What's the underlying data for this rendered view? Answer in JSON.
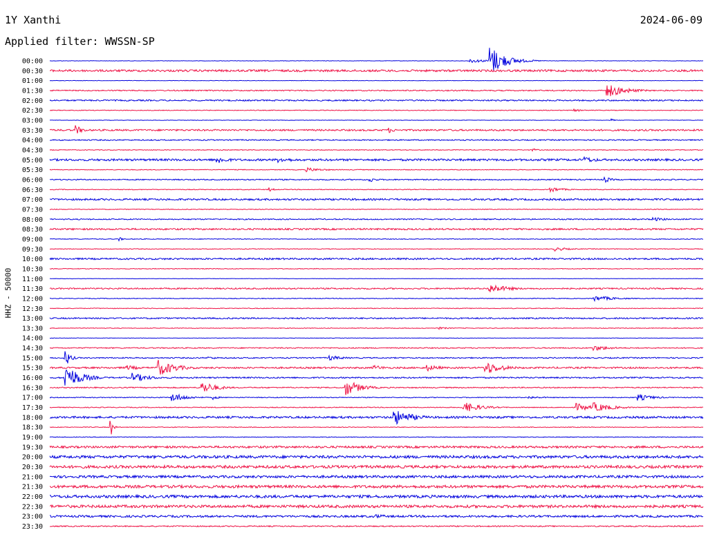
{
  "header": {
    "station": "1Y Xanthi",
    "date": "2024-06-09",
    "filter": "Applied filter: WWSSN-SP"
  },
  "axis_label": "HHZ - 50000",
  "colors": {
    "trace_a": "#0000dd",
    "trace_b": "#ee1144",
    "background": "#ffffff",
    "text": "#000000"
  },
  "chart_data": {
    "type": "line",
    "ylabel": "HHZ - 50000",
    "rows": [
      "00:00",
      "00:30",
      "01:00",
      "01:30",
      "02:00",
      "02:30",
      "03:00",
      "03:30",
      "04:00",
      "04:30",
      "05:00",
      "05:30",
      "06:00",
      "06:30",
      "07:00",
      "07:30",
      "08:00",
      "08:30",
      "09:00",
      "09:30",
      "10:00",
      "10:30",
      "11:00",
      "11:30",
      "12:00",
      "12:30",
      "13:00",
      "13:30",
      "14:00",
      "14:30",
      "15:00",
      "15:30",
      "16:00",
      "16:30",
      "17:00",
      "17:30",
      "18:00",
      "18:30",
      "19:00",
      "19:30",
      "20:00",
      "20:30",
      "21:00",
      "21:30",
      "22:00",
      "22:30",
      "23:00",
      "23:30"
    ],
    "row_minutes": 30,
    "series_colors": [
      "#0000dd",
      "#ee1144"
    ],
    "noise": [
      0.3,
      1.5,
      0.3,
      0.8,
      1.0,
      0.5,
      0.3,
      1.2,
      0.8,
      0.5,
      1.5,
      0.5,
      0.8,
      0.5,
      1.3,
      0.5,
      0.8,
      1.2,
      0.5,
      0.5,
      1.2,
      0.5,
      0.3,
      1.0,
      0.5,
      0.5,
      1.0,
      0.5,
      0.3,
      0.8,
      0.8,
      1.2,
      1.0,
      0.8,
      0.6,
      0.6,
      1.5,
      0.5,
      0.5,
      1.5,
      2.0,
      2.0,
      1.8,
      2.0,
      2.0,
      2.0,
      1.5,
      0.8
    ],
    "events": [
      {
        "row": "00:00",
        "minute": 20.2,
        "amp": 23,
        "dur": 1.2
      },
      {
        "row": "00:00",
        "minute": 19.3,
        "amp": 3,
        "dur": 1.5
      },
      {
        "row": "01:30",
        "minute": 25.6,
        "amp": 10,
        "dur": 1.5
      },
      {
        "row": "01:30",
        "minute": 26.5,
        "amp": 3,
        "dur": 1.5
      },
      {
        "row": "02:30",
        "minute": 24.0,
        "amp": 2,
        "dur": 1.0
      },
      {
        "row": "03:00",
        "minute": 25.8,
        "amp": 2,
        "dur": 0.3
      },
      {
        "row": "03:30",
        "minute": 1.2,
        "amp": 7,
        "dur": 0.6
      },
      {
        "row": "03:30",
        "minute": 15.6,
        "amp": 4,
        "dur": 0.5
      },
      {
        "row": "04:30",
        "minute": 22.2,
        "amp": 2,
        "dur": 0.5
      },
      {
        "row": "05:00",
        "minute": 7.7,
        "amp": 6,
        "dur": 1.0
      },
      {
        "row": "05:00",
        "minute": 10.5,
        "amp": 4,
        "dur": 1.6
      },
      {
        "row": "05:00",
        "minute": 24.5,
        "amp": 5,
        "dur": 1.3
      },
      {
        "row": "05:30",
        "minute": 11.8,
        "amp": 3,
        "dur": 1.5
      },
      {
        "row": "06:00",
        "minute": 14.7,
        "amp": 4,
        "dur": 0.5
      },
      {
        "row": "06:00",
        "minute": 25.5,
        "amp": 4,
        "dur": 0.6
      },
      {
        "row": "06:30",
        "minute": 10.1,
        "amp": 3,
        "dur": 0.4
      },
      {
        "row": "06:30",
        "minute": 23.0,
        "amp": 4,
        "dur": 1.0
      },
      {
        "row": "08:00",
        "minute": 27.7,
        "amp": 3,
        "dur": 1.2
      },
      {
        "row": "09:00",
        "minute": 3.2,
        "amp": 3,
        "dur": 0.3
      },
      {
        "row": "09:30",
        "minute": 23.2,
        "amp": 3,
        "dur": 1.2
      },
      {
        "row": "11:30",
        "minute": 20.2,
        "amp": 7,
        "dur": 1.5
      },
      {
        "row": "12:00",
        "minute": 25.0,
        "amp": 4,
        "dur": 1.8
      },
      {
        "row": "13:30",
        "minute": 17.8,
        "amp": 2,
        "dur": 1.0
      },
      {
        "row": "14:30",
        "minute": 25.0,
        "amp": 4,
        "dur": 1.5
      },
      {
        "row": "15:00",
        "minute": 0.7,
        "amp": 14,
        "dur": 0.4
      },
      {
        "row": "15:00",
        "minute": 7.3,
        "amp": 2,
        "dur": 1.2
      },
      {
        "row": "15:00",
        "minute": 12.8,
        "amp": 4,
        "dur": 1.2
      },
      {
        "row": "15:30",
        "minute": 3.5,
        "amp": 4,
        "dur": 1.2
      },
      {
        "row": "15:30",
        "minute": 5.0,
        "amp": 12,
        "dur": 1.4
      },
      {
        "row": "15:30",
        "minute": 14.9,
        "amp": 4,
        "dur": 1.0
      },
      {
        "row": "15:30",
        "minute": 17.3,
        "amp": 5,
        "dur": 1.2
      },
      {
        "row": "15:30",
        "minute": 20.0,
        "amp": 10,
        "dur": 1.4
      },
      {
        "row": "16:00",
        "minute": 0.7,
        "amp": 20,
        "dur": 1.2
      },
      {
        "row": "16:00",
        "minute": 3.8,
        "amp": 7,
        "dur": 1.4
      },
      {
        "row": "16:30",
        "minute": 7.0,
        "amp": 9,
        "dur": 1.2
      },
      {
        "row": "16:30",
        "minute": 13.6,
        "amp": 12,
        "dur": 1.2
      },
      {
        "row": "17:00",
        "minute": 5.6,
        "amp": 7,
        "dur": 1.2
      },
      {
        "row": "17:00",
        "minute": 7.5,
        "amp": 3,
        "dur": 0.5
      },
      {
        "row": "17:00",
        "minute": 22.0,
        "amp": 2,
        "dur": 1.5
      },
      {
        "row": "17:00",
        "minute": 27.0,
        "amp": 5,
        "dur": 1.3
      },
      {
        "row": "17:30",
        "minute": 19.0,
        "amp": 8,
        "dur": 1.4
      },
      {
        "row": "17:30",
        "minute": 24.2,
        "amp": 6,
        "dur": 1.2
      },
      {
        "row": "17:30",
        "minute": 25.0,
        "amp": 7,
        "dur": 1.5
      },
      {
        "row": "18:00",
        "minute": 15.8,
        "amp": 12,
        "dur": 1.5
      },
      {
        "row": "18:00",
        "minute": 25.3,
        "amp": 2,
        "dur": 0.5
      },
      {
        "row": "18:30",
        "minute": 2.8,
        "amp": 13,
        "dur": 0.2
      },
      {
        "row": "23:00",
        "minute": 15.0,
        "amp": 3,
        "dur": 1.5
      }
    ]
  }
}
